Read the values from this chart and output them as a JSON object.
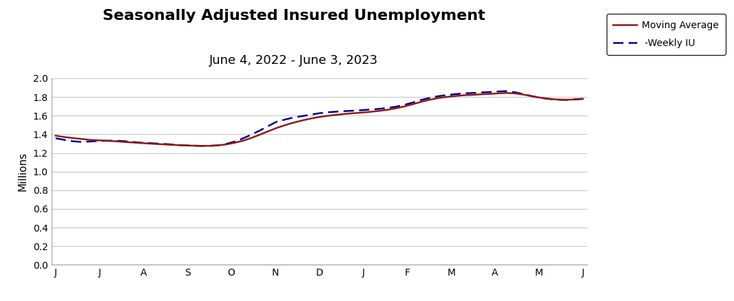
{
  "title": "Seasonally Adjusted Insured Unemployment",
  "subtitle": "June 4, 2022 - June 3, 2023",
  "ylabel": "Millions",
  "ylim": [
    0.0,
    2.0
  ],
  "yticks": [
    0.0,
    0.2,
    0.4,
    0.6,
    0.8,
    1.0,
    1.2,
    1.4,
    1.6,
    1.8,
    2.0
  ],
  "xtick_labels": [
    "J",
    "J",
    "A",
    "S",
    "O",
    "N",
    "D",
    "J",
    "F",
    "M",
    "A",
    "M",
    "J"
  ],
  "moving_avg_color": "#8B1A1A",
  "weekly_color": "#00008B",
  "legend_ma": "Moving Average",
  "legend_wu": " -Weekly IU",
  "title_fontsize": 16,
  "subtitle_fontsize": 13,
  "weekly_iu": [
    1.357,
    1.34,
    1.325,
    1.318,
    1.322,
    1.328,
    1.33,
    1.332,
    1.326,
    1.318,
    1.31,
    1.305,
    1.3,
    1.295,
    1.288,
    1.282,
    1.278,
    1.275,
    1.275,
    1.28,
    1.295,
    1.32,
    1.355,
    1.395,
    1.44,
    1.488,
    1.535,
    1.558,
    1.58,
    1.595,
    1.61,
    1.625,
    1.635,
    1.642,
    1.648,
    1.652,
    1.658,
    1.665,
    1.672,
    1.682,
    1.695,
    1.715,
    1.74,
    1.768,
    1.79,
    1.808,
    1.82,
    1.83,
    1.838,
    1.842,
    1.848,
    1.852,
    1.858,
    1.862,
    1.85,
    1.83,
    1.808,
    1.79,
    1.778,
    1.77,
    1.768,
    1.775,
    1.78
  ],
  "moving_avg": [
    1.385,
    1.37,
    1.36,
    1.35,
    1.34,
    1.335,
    1.33,
    1.325,
    1.318,
    1.312,
    1.306,
    1.3,
    1.295,
    1.29,
    1.285,
    1.28,
    1.278,
    1.276,
    1.276,
    1.28,
    1.29,
    1.308,
    1.33,
    1.36,
    1.395,
    1.432,
    1.468,
    1.498,
    1.525,
    1.548,
    1.568,
    1.585,
    1.598,
    1.608,
    1.618,
    1.625,
    1.632,
    1.64,
    1.65,
    1.662,
    1.678,
    1.698,
    1.722,
    1.748,
    1.77,
    1.788,
    1.8,
    1.81,
    1.818,
    1.822,
    1.828,
    1.832,
    1.838,
    1.842,
    1.838,
    1.825,
    1.808,
    1.792,
    1.78,
    1.772,
    1.77,
    1.772,
    1.778
  ]
}
